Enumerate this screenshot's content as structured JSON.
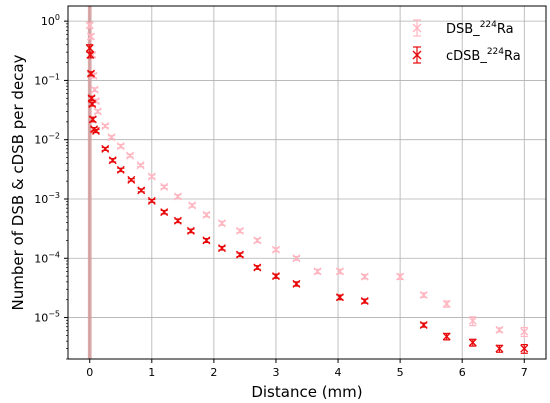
{
  "chart_data": {
    "type": "scatter",
    "title": "",
    "xlabel": "Distance (mm)",
    "ylabel": "Number of DSB & cDSB per decay",
    "xlim": [
      -0.35,
      7.35
    ],
    "ylim": [
      2e-06,
      1.8
    ],
    "yscale": "log",
    "grid": true,
    "legend_position": "top-right",
    "x_ticks": [
      0,
      1,
      2,
      3,
      4,
      5,
      6,
      7
    ],
    "x_tick_labels": [
      "0",
      "1",
      "2",
      "3",
      "4",
      "5",
      "6",
      "7"
    ],
    "y_ticks": [
      1e-05,
      0.0001,
      0.001,
      0.01,
      0.1,
      1
    ],
    "y_tick_labels": [
      {
        "base": "10",
        "exp": "−5"
      },
      {
        "base": "10",
        "exp": "−4"
      },
      {
        "base": "10",
        "exp": "−3"
      },
      {
        "base": "10",
        "exp": "−2"
      },
      {
        "base": "10",
        "exp": "−1"
      },
      {
        "base": "10",
        "exp": "0"
      }
    ],
    "source_band": {
      "x_range": [
        -0.03,
        0.03
      ],
      "color": "#d49a9a"
    },
    "series": [
      {
        "name": "DSB_224Ra",
        "legend_main": "DSB_",
        "legend_sup": "224",
        "legend_tail": "Ra",
        "color": "#ffb6c1",
        "marker": "x",
        "points": [
          {
            "x": 0.0,
            "y": 0.85,
            "err": 0.08
          },
          {
            "x": 0.02,
            "y": 0.55,
            "err": 0.05
          },
          {
            "x": 0.04,
            "y": 0.27,
            "err": 0.02
          },
          {
            "x": 0.06,
            "y": 0.12,
            "err": 0.01
          },
          {
            "x": 0.08,
            "y": 0.07,
            "err": 0.005
          },
          {
            "x": 0.1,
            "y": 0.045,
            "err": 0.003
          },
          {
            "x": 0.13,
            "y": 0.03,
            "err": 0.002
          },
          {
            "x": 0.25,
            "y": 0.017,
            "err": 0.001
          },
          {
            "x": 0.35,
            "y": 0.011,
            "err": 0.0007
          },
          {
            "x": 0.5,
            "y": 0.0078,
            "err": 0.0005
          },
          {
            "x": 0.65,
            "y": 0.0054,
            "err": 0.0003
          },
          {
            "x": 0.82,
            "y": 0.0037,
            "err": 0.0002
          },
          {
            "x": 1.0,
            "y": 0.0024,
            "err": 0.00015
          },
          {
            "x": 1.2,
            "y": 0.0016,
            "err": 0.0001
          },
          {
            "x": 1.42,
            "y": 0.0011,
            "err": 8e-05
          },
          {
            "x": 1.65,
            "y": 0.00078,
            "err": 5e-05
          },
          {
            "x": 1.88,
            "y": 0.00054,
            "err": 4e-05
          },
          {
            "x": 2.13,
            "y": 0.00039,
            "err": 3e-05
          },
          {
            "x": 2.42,
            "y": 0.00029,
            "err": 2e-05
          },
          {
            "x": 2.7,
            "y": 0.0002,
            "err": 1.5e-05
          },
          {
            "x": 3.0,
            "y": 0.00014,
            "err": 1e-05
          },
          {
            "x": 3.33,
            "y": 0.0001,
            "err": 7e-06
          },
          {
            "x": 3.67,
            "y": 6e-05,
            "err": 5e-06
          },
          {
            "x": 4.03,
            "y": 6e-05,
            "err": 5e-06
          },
          {
            "x": 4.43,
            "y": 4.9e-05,
            "err": 4e-06
          },
          {
            "x": 5.0,
            "y": 4.9e-05,
            "err": 5e-06
          },
          {
            "x": 5.38,
            "y": 2.4e-05,
            "err": 2e-06
          },
          {
            "x": 5.75,
            "y": 1.7e-05,
            "err": 2e-06
          },
          {
            "x": 6.17,
            "y": 8.8e-06,
            "err": 1.5e-06
          },
          {
            "x": 6.6,
            "y": 6.2e-06,
            "err": 5e-07
          },
          {
            "x": 7.0,
            "y": 5.8e-06,
            "err": 1e-06
          }
        ]
      },
      {
        "name": "cDSB_224Ra",
        "legend_main": "cDSB_",
        "legend_sup": "224",
        "legend_tail": "Ra",
        "color": "#e8090b",
        "marker": "x",
        "points": [
          {
            "x": 0.0,
            "y": 0.35,
            "err": 0.05
          },
          {
            "x": 0.01,
            "y": 0.27,
            "err": 0.03
          },
          {
            "x": 0.02,
            "y": 0.13,
            "err": 0.01
          },
          {
            "x": 0.03,
            "y": 0.05,
            "err": 0.004
          },
          {
            "x": 0.04,
            "y": 0.04,
            "err": 0.003
          },
          {
            "x": 0.05,
            "y": 0.022,
            "err": 0.002
          },
          {
            "x": 0.07,
            "y": 0.015,
            "err": 0.001
          },
          {
            "x": 0.1,
            "y": 0.014,
            "err": 0.0008
          },
          {
            "x": 0.25,
            "y": 0.007,
            "err": 0.0004
          },
          {
            "x": 0.37,
            "y": 0.0045,
            "err": 0.0003
          },
          {
            "x": 0.5,
            "y": 0.0031,
            "err": 0.0002
          },
          {
            "x": 0.67,
            "y": 0.0021,
            "err": 0.0001
          },
          {
            "x": 0.83,
            "y": 0.0014,
            "err": 8e-05
          },
          {
            "x": 1.0,
            "y": 0.00093,
            "err": 5e-05
          },
          {
            "x": 1.2,
            "y": 0.0006,
            "err": 4e-05
          },
          {
            "x": 1.42,
            "y": 0.00043,
            "err": 3e-05
          },
          {
            "x": 1.63,
            "y": 0.00029,
            "err": 2e-05
          },
          {
            "x": 1.88,
            "y": 0.0002,
            "err": 1.5e-05
          },
          {
            "x": 2.13,
            "y": 0.000148,
            "err": 1e-05
          },
          {
            "x": 2.42,
            "y": 0.000115,
            "err": 8e-06
          },
          {
            "x": 2.7,
            "y": 7e-05,
            "err": 5e-06
          },
          {
            "x": 3.0,
            "y": 5e-05,
            "err": 4e-06
          },
          {
            "x": 3.33,
            "y": 3.7e-05,
            "err": 3e-06
          },
          {
            "x": 4.03,
            "y": 2.2e-05,
            "err": 2e-06
          },
          {
            "x": 4.43,
            "y": 1.9e-05,
            "err": 1.5e-06
          },
          {
            "x": 5.38,
            "y": 7.5e-06,
            "err": 6e-07
          },
          {
            "x": 5.75,
            "y": 4.8e-06,
            "err": 6e-07
          },
          {
            "x": 6.17,
            "y": 3.8e-06,
            "err": 5e-07
          },
          {
            "x": 6.6,
            "y": 3e-06,
            "err": 4e-07
          },
          {
            "x": 7.0,
            "y": 3e-06,
            "err": 5e-07
          }
        ]
      }
    ]
  }
}
